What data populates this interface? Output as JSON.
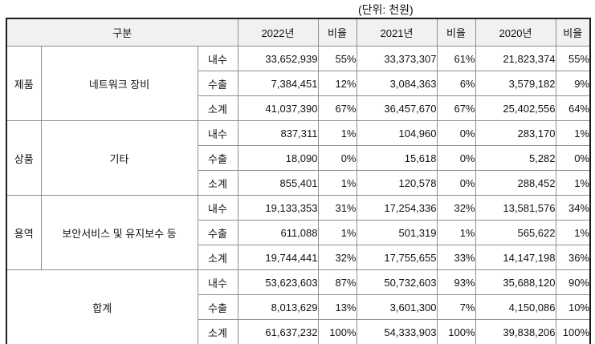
{
  "unit_label": "(단위: 천원)",
  "table": {
    "col_headers": [
      "구분",
      "2022년",
      "비율",
      "2021년",
      "비율",
      "2020년",
      "비율"
    ],
    "groups": [
      {
        "category": "제품",
        "name": "네트워크 장비",
        "rows": [
          {
            "channel": "내수",
            "values": [
              "33,652,939",
              "55%",
              "33,373,307",
              "61%",
              "21,823,374",
              "55%"
            ]
          },
          {
            "channel": "수출",
            "values": [
              "7,384,451",
              "12%",
              "3,084,363",
              "6%",
              "3,579,182",
              "9%"
            ]
          },
          {
            "channel": "소계",
            "values": [
              "41,037,390",
              "67%",
              "36,457,670",
              "67%",
              "25,402,556",
              "64%"
            ]
          }
        ]
      },
      {
        "category": "상품",
        "name": "기타",
        "rows": [
          {
            "channel": "내수",
            "values": [
              "837,311",
              "1%",
              "104,960",
              "0%",
              "283,170",
              "1%"
            ]
          },
          {
            "channel": "수출",
            "values": [
              "18,090",
              "0%",
              "15,618",
              "0%",
              "5,282",
              "0%"
            ]
          },
          {
            "channel": "소계",
            "values": [
              "855,401",
              "1%",
              "120,578",
              "0%",
              "288,452",
              "1%"
            ]
          }
        ]
      },
      {
        "category": "용역",
        "name": "보안서비스 및 유지보수 등",
        "rows": [
          {
            "channel": "내수",
            "values": [
              "19,133,353",
              "31%",
              "17,254,336",
              "32%",
              "13,581,576",
              "34%"
            ]
          },
          {
            "channel": "수출",
            "values": [
              "611,088",
              "1%",
              "501,319",
              "1%",
              "565,622",
              "1%"
            ]
          },
          {
            "channel": "소계",
            "values": [
              "19,744,441",
              "32%",
              "17,755,655",
              "33%",
              "14,147,198",
              "36%"
            ]
          }
        ]
      },
      {
        "category": "합계",
        "rows": [
          {
            "channel": "내수",
            "values": [
              "53,623,603",
              "87%",
              "50,732,603",
              "93%",
              "35,688,120",
              "90%"
            ]
          },
          {
            "channel": "수출",
            "values": [
              "8,013,629",
              "13%",
              "3,601,300",
              "7%",
              "4,150,086",
              "10%"
            ]
          },
          {
            "channel": "소계",
            "values": [
              "61,637,232",
              "100%",
              "54,333,903",
              "100%",
              "39,838,206",
              "100%"
            ]
          }
        ]
      }
    ]
  }
}
